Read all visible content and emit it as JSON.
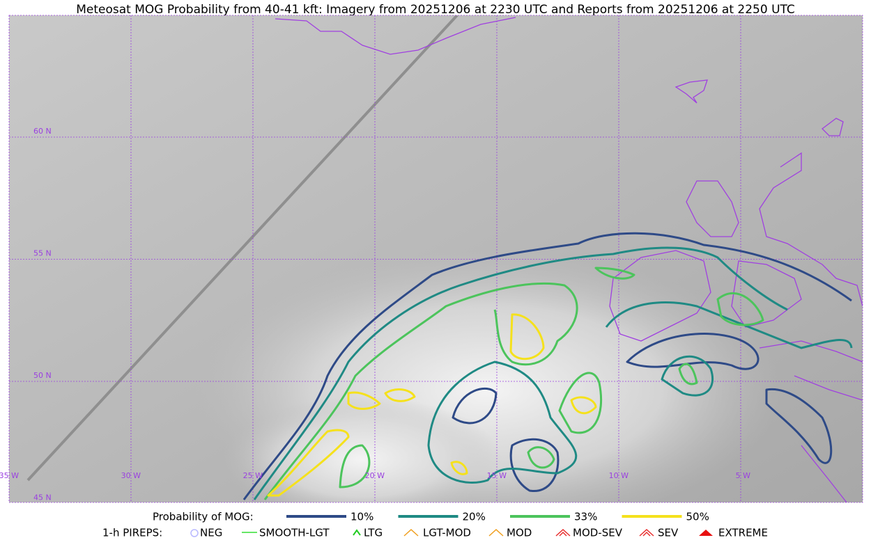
{
  "title": "Meteosat MOG Probability from 40-41 kft: Imagery from 20251206 at 2230 UTC and Reports from 20251206 at 2250 UTC",
  "map": {
    "latitude_labels": [
      "60 N",
      "55 N",
      "50 N",
      "45 N"
    ],
    "longitude_labels": [
      "35 W",
      "30 W",
      "25 W",
      "20 W",
      "15 W",
      "10 W",
      "5 W"
    ]
  },
  "legend": {
    "probability": {
      "label": "Probability of MOG:",
      "items": [
        {
          "name": "10%",
          "color": "#2e4a87"
        },
        {
          "name": "20%",
          "color": "#1f8a84"
        },
        {
          "name": "33%",
          "color": "#4cc45c"
        },
        {
          "name": "50%",
          "color": "#f5e11c"
        }
      ]
    },
    "pireps": {
      "label": "1-h PIREPS:",
      "items": [
        {
          "name": "NEG",
          "color": "#b8b8ff"
        },
        {
          "name": "SMOOTH-LGT",
          "color": "#33dd33"
        },
        {
          "name": "LTG",
          "color": "#22cc22"
        },
        {
          "name": "LGT-MOD",
          "color": "#f0a020"
        },
        {
          "name": "MOD",
          "color": "#f0a020"
        },
        {
          "name": "MOD-SEV",
          "color": "#e83030"
        },
        {
          "name": "SEV",
          "color": "#e83030"
        },
        {
          "name": "EXTREME",
          "color": "#e81010"
        }
      ]
    }
  }
}
